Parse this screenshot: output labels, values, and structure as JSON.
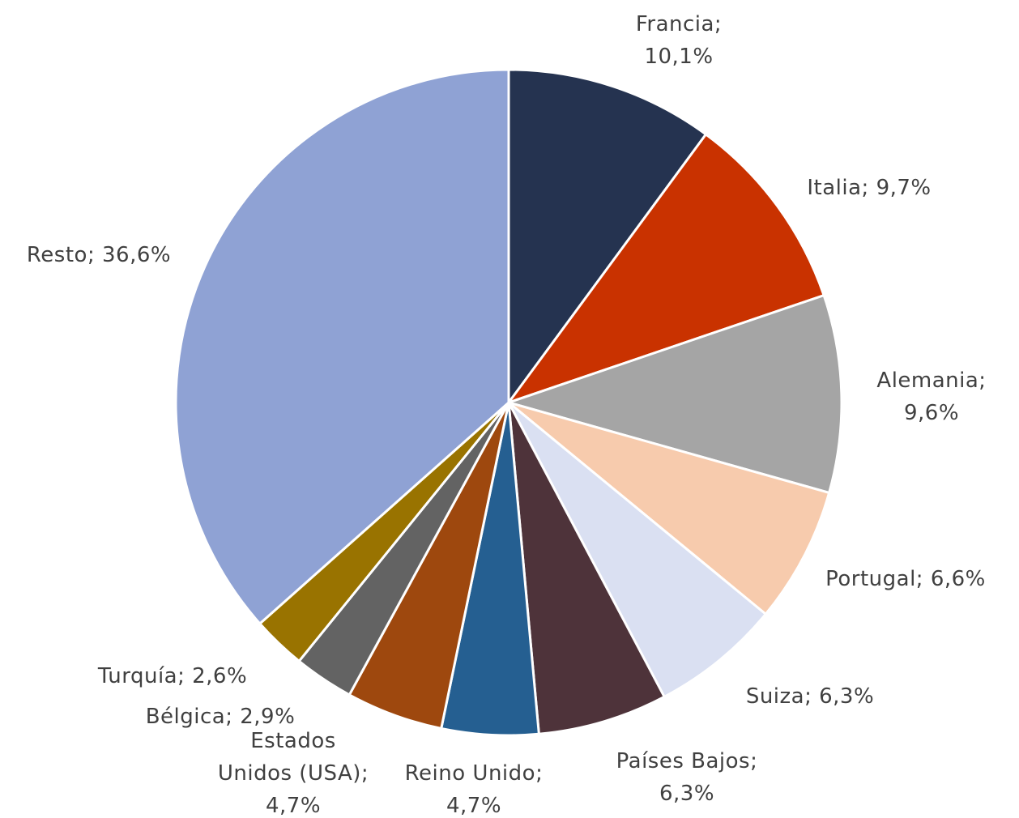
{
  "chart_data": {
    "type": "pie",
    "categories": [
      "Francia;",
      "Italia;",
      "Alemania;",
      "Portugal;",
      "Suiza;",
      "Países Bajos;",
      "Reino Unido;",
      "Estados Unidos (USA);",
      "Bélgica;",
      "Turquía;",
      "Resto;"
    ],
    "values": [
      10.1,
      9.7,
      9.6,
      6.6,
      6.3,
      6.3,
      4.7,
      4.7,
      2.9,
      2.6,
      36.6
    ],
    "value_labels": [
      "10,1%",
      "9,7%",
      "9,6%",
      "6,6%",
      "6,3%",
      "6,3%",
      "4,7%",
      "4,7%",
      "2,9%",
      "2,6%",
      "36,6%"
    ],
    "colors": [
      "#253350",
      "#c93200",
      "#a5a5a5",
      "#f7cbad",
      "#dae0f2",
      "#4e333a",
      "#255f91",
      "#9e480e",
      "#636363",
      "#997300",
      "#8fa2d4"
    ]
  }
}
